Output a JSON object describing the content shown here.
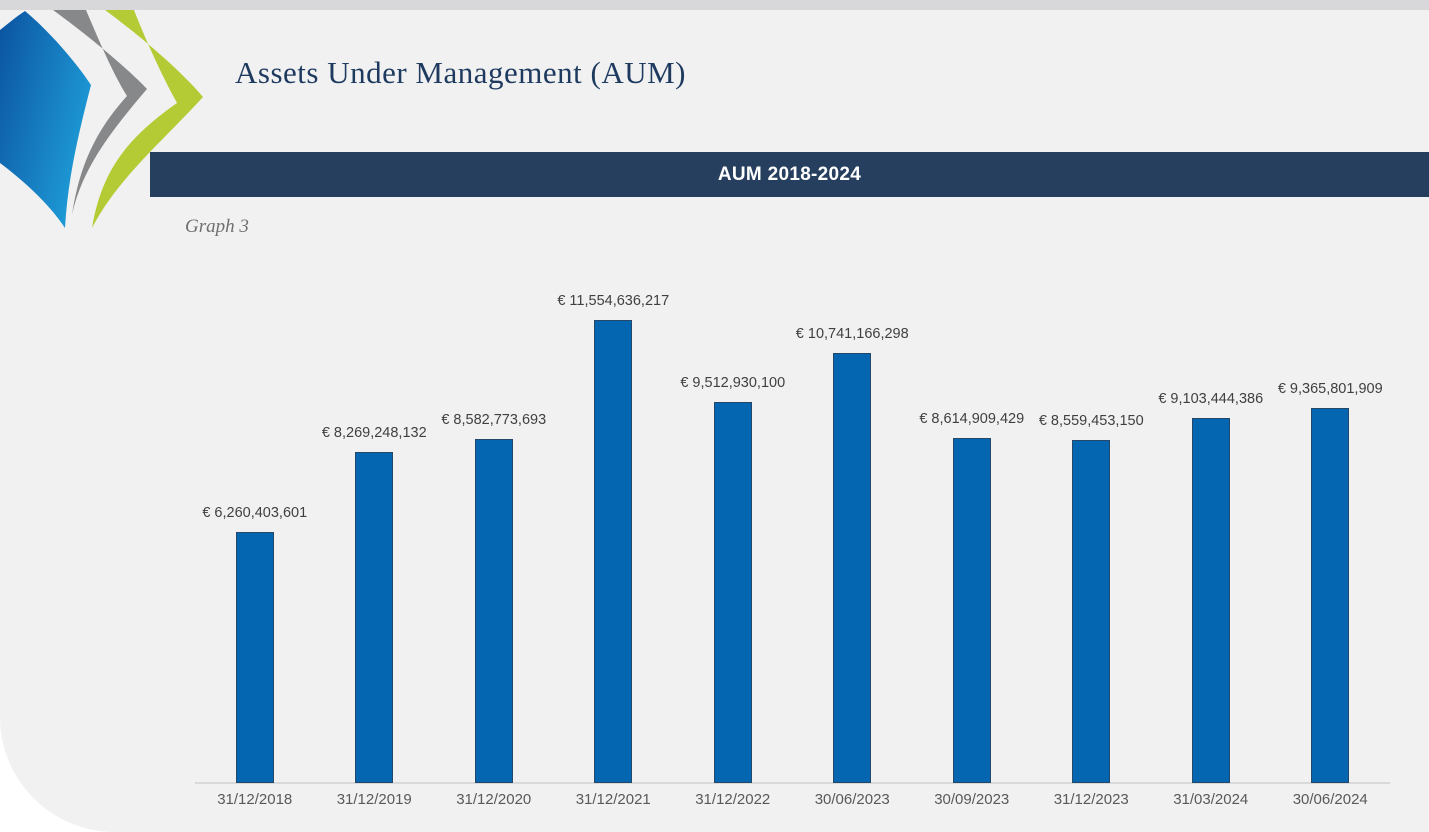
{
  "header": {
    "title": "Assets Under Management (AUM)"
  },
  "banner": {
    "title": "AUM 2018-2024"
  },
  "caption": "Graph 3",
  "logo": {
    "icon": "triple-chevron-leaf-logo",
    "colors": {
      "blue_gradient_start": "#0b53a0",
      "blue_gradient_end": "#1e9bd7",
      "gray": "#868889",
      "green": "#b5cb35"
    }
  },
  "chart_data": {
    "type": "bar",
    "title": "AUM 2018-2024",
    "currency_symbol": "€",
    "categories": [
      "31/12/2018",
      "31/12/2019",
      "31/12/2020",
      "31/12/2021",
      "31/12/2022",
      "30/06/2023",
      "30/09/2023",
      "31/12/2023",
      "31/03/2024",
      "30/06/2024"
    ],
    "values": [
      6260403601,
      8269248132,
      8582773693,
      11554636217,
      9512930100,
      10741166298,
      8614909429,
      8559453150,
      9103444386,
      9365801909
    ],
    "value_labels": [
      "€ 6,260,403,601",
      "€ 8,269,248,132",
      "€ 8,582,773,693",
      "€ 11,554,636,217",
      "€ 9,512,930,100",
      "€ 10,741,166,298",
      "€ 8,614,909,429",
      "€ 8,559,453,150",
      "€ 9,103,444,386",
      "€ 9,365,801,909"
    ],
    "xlabel": "",
    "ylabel": "",
    "ylim": [
      0,
      11554636217
    ],
    "grid": false,
    "legend": false,
    "bar_fill": "#0465b1",
    "bar_border": "#24486a",
    "axis_line_color": "#d9d9d9",
    "value_label_color": "#404040",
    "tick_label_color": "#595959"
  },
  "colors": {
    "page_bg": "#ffffff",
    "top_strip": "#d8d7da",
    "card_bg": "#f1f1f2",
    "banner_bg": "#273f5e",
    "banner_text": "#ffffff",
    "title_text": "#1e3a5f",
    "caption_text": "#6f6f6f"
  }
}
